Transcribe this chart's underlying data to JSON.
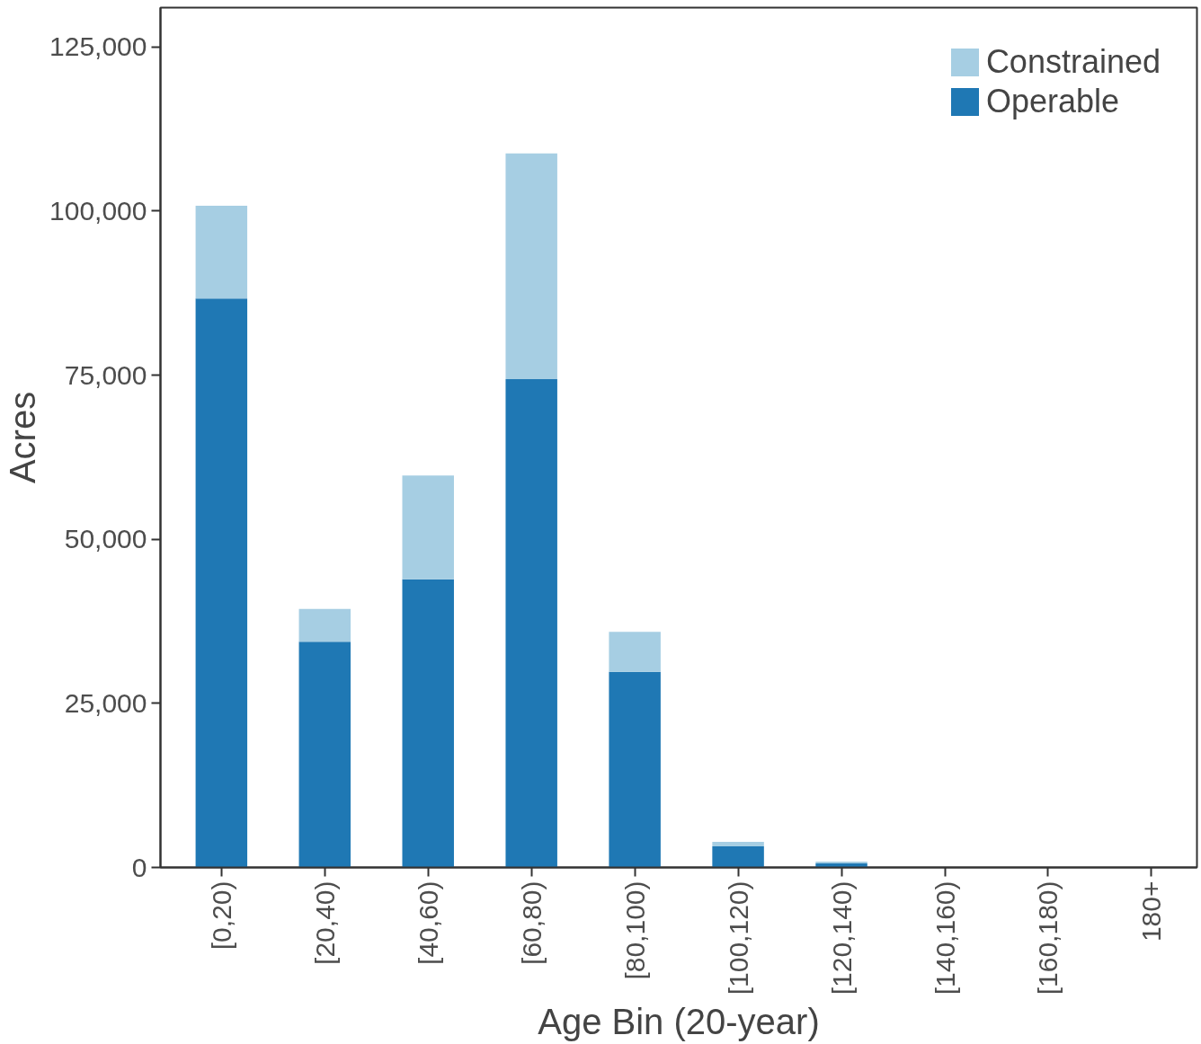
{
  "chart_data": {
    "type": "bar",
    "stacked": true,
    "xlabel": "Age Bin (20-year)",
    "ylabel": "Acres",
    "categories": [
      "[0,20)",
      "[20,40)",
      "[40,60)",
      "[60,80)",
      "[80,100)",
      "[100,120)",
      "[120,140)",
      "[140,160)",
      "[160,180)",
      "180+"
    ],
    "series": [
      {
        "name": "Operable",
        "color": "#1f78b4",
        "values": [
          86700,
          34400,
          43900,
          74400,
          29800,
          3200,
          600,
          0,
          0,
          0
        ]
      },
      {
        "name": "Constrained",
        "color": "#a6cee3",
        "values": [
          14100,
          5000,
          15800,
          34400,
          6100,
          700,
          300,
          0,
          0,
          0
        ]
      }
    ],
    "ylim": [
      0,
      131000
    ],
    "yticks": [
      {
        "value": 0,
        "label": "0"
      },
      {
        "value": 25000,
        "label": "25,000"
      },
      {
        "value": 50000,
        "label": "50,000"
      },
      {
        "value": 75000,
        "label": "75,000"
      },
      {
        "value": 100000,
        "label": "100,000"
      },
      {
        "value": 125000,
        "label": "125,000"
      }
    ],
    "grid": false,
    "legend": "top right"
  }
}
